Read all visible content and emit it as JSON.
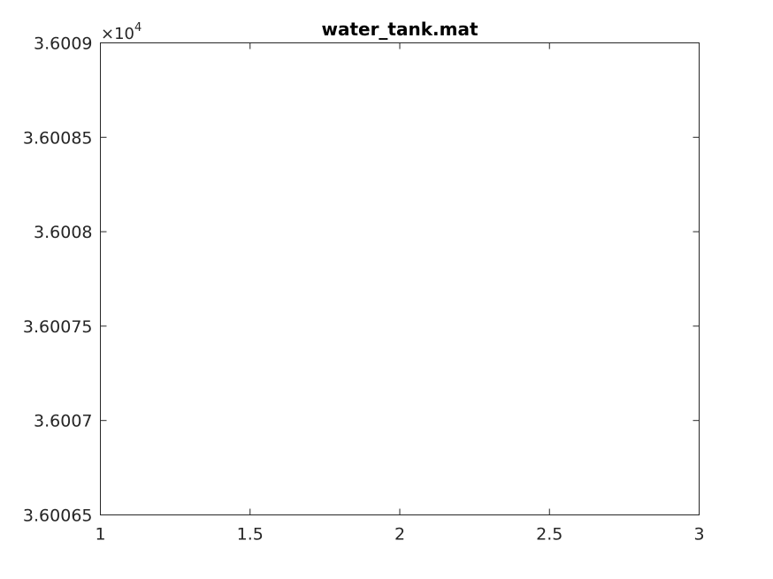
{
  "chart_data": {
    "type": "line",
    "title": "water_tank.mat",
    "xlabel": "",
    "ylabel": "",
    "xlim": [
      1,
      3
    ],
    "ylim": [
      3.60065,
      3.6009
    ],
    "y_exponent_label": {
      "base": "×10",
      "power": "4"
    },
    "x_ticks": [
      {
        "value": 1,
        "label": "1"
      },
      {
        "value": 1.5,
        "label": "1.5"
      },
      {
        "value": 2,
        "label": "2"
      },
      {
        "value": 2.5,
        "label": "2.5"
      },
      {
        "value": 3,
        "label": "3"
      }
    ],
    "y_ticks": [
      {
        "value": 3.60065,
        "label": "3.60065"
      },
      {
        "value": 3.6007,
        "label": "3.6007"
      },
      {
        "value": 3.60075,
        "label": "3.60075"
      },
      {
        "value": 3.6008,
        "label": "3.6008"
      },
      {
        "value": 3.60085,
        "label": "3.60085"
      },
      {
        "value": 3.6009,
        "label": "3.6009"
      }
    ],
    "series": [],
    "grid": false,
    "box": true,
    "colors": {
      "axis": "#262626",
      "title": "#000000",
      "background": "#ffffff"
    }
  }
}
